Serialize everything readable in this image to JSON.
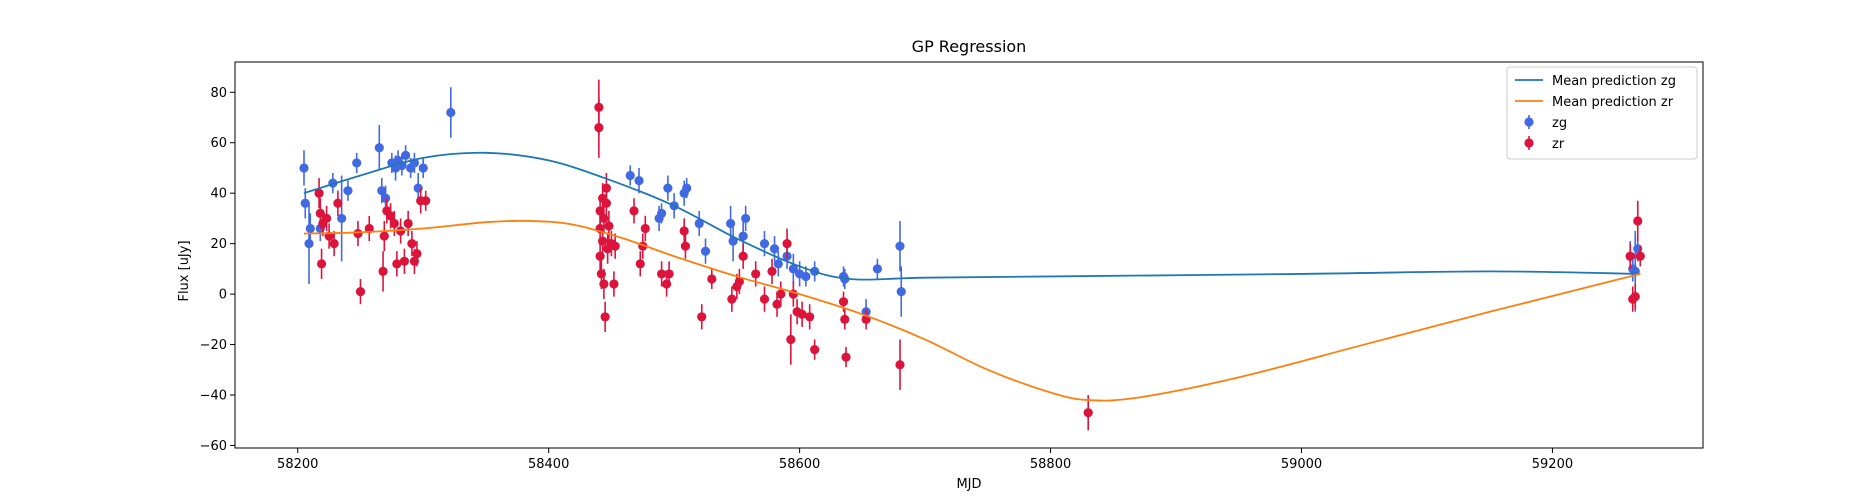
{
  "chart_data": {
    "type": "scatter",
    "title": "GP Regression",
    "xlabel": "MJD",
    "ylabel": "Flux [uJy]",
    "xlim": [
      58150,
      59320
    ],
    "ylim": [
      -61,
      92
    ],
    "xticks": [
      58200,
      58400,
      58600,
      58800,
      59000,
      59200
    ],
    "yticks": [
      -60,
      -40,
      -20,
      0,
      20,
      40,
      60,
      80
    ],
    "grid": false,
    "legend_position": "top-right",
    "series": [
      {
        "name": "Mean prediction zg",
        "kind": "line",
        "color": "#1f77b4",
        "x": [
          58205,
          58250,
          58300,
          58350,
          58400,
          58450,
          58500,
          58550,
          58600,
          58640,
          58700,
          58800,
          59000,
          59150,
          59270
        ],
        "y": [
          40,
          47,
          54,
          56,
          53,
          45,
          35,
          22,
          11,
          6,
          6.5,
          7,
          8,
          9,
          8
        ]
      },
      {
        "name": "Mean prediction zr",
        "kind": "line",
        "color": "#ff7f0e",
        "x": [
          58205,
          58250,
          58300,
          58350,
          58385,
          58420,
          58460,
          58500,
          58550,
          58600,
          58650,
          58700,
          58750,
          58800,
          58830,
          58870,
          58950,
          59050,
          59150,
          59230,
          59270
        ],
        "y": [
          24,
          24.5,
          26,
          28.5,
          29,
          27.5,
          22,
          15,
          7,
          0,
          -8,
          -18,
          -30,
          -39,
          -42,
          -41,
          -33,
          -20,
          -7,
          3,
          8
        ]
      },
      {
        "name": "zg",
        "kind": "errorbar",
        "color": "#4169e1",
        "points": [
          {
            "x": 58205,
            "y": 50,
            "err": 7
          },
          {
            "x": 58206,
            "y": 36,
            "err": 6
          },
          {
            "x": 58209,
            "y": 20,
            "err": 16
          },
          {
            "x": 58210,
            "y": 26,
            "err": 6
          },
          {
            "x": 58218,
            "y": 26,
            "err": 5
          },
          {
            "x": 58228,
            "y": 44,
            "err": 4
          },
          {
            "x": 58235,
            "y": 30,
            "err": 17
          },
          {
            "x": 58240,
            "y": 41,
            "err": 4
          },
          {
            "x": 58247,
            "y": 52,
            "err": 4
          },
          {
            "x": 58265,
            "y": 58,
            "err": 9
          },
          {
            "x": 58267,
            "y": 41,
            "err": 5
          },
          {
            "x": 58270,
            "y": 38,
            "err": 5
          },
          {
            "x": 58275,
            "y": 52,
            "err": 4
          },
          {
            "x": 58278,
            "y": 50,
            "err": 5
          },
          {
            "x": 58280,
            "y": 53,
            "err": 4
          },
          {
            "x": 58283,
            "y": 51,
            "err": 4
          },
          {
            "x": 58286,
            "y": 55,
            "err": 4
          },
          {
            "x": 58290,
            "y": 50,
            "err": 4
          },
          {
            "x": 58293,
            "y": 52,
            "err": 4
          },
          {
            "x": 58296,
            "y": 42,
            "err": 6
          },
          {
            "x": 58300,
            "y": 50,
            "err": 4
          },
          {
            "x": 58322,
            "y": 72,
            "err": 10
          },
          {
            "x": 58465,
            "y": 47,
            "err": 4
          },
          {
            "x": 58472,
            "y": 45,
            "err": 5
          },
          {
            "x": 58488,
            "y": 30,
            "err": 5
          },
          {
            "x": 58490,
            "y": 32,
            "err": 4
          },
          {
            "x": 58495,
            "y": 42,
            "err": 5
          },
          {
            "x": 58500,
            "y": 35,
            "err": 5
          },
          {
            "x": 58508,
            "y": 40,
            "err": 5
          },
          {
            "x": 58510,
            "y": 42,
            "err": 4
          },
          {
            "x": 58520,
            "y": 28,
            "err": 5
          },
          {
            "x": 58525,
            "y": 17,
            "err": 5
          },
          {
            "x": 58545,
            "y": 28,
            "err": 7
          },
          {
            "x": 58547,
            "y": 21,
            "err": 8
          },
          {
            "x": 58555,
            "y": 23,
            "err": 7
          },
          {
            "x": 58557,
            "y": 30,
            "err": 5
          },
          {
            "x": 58572,
            "y": 20,
            "err": 5
          },
          {
            "x": 58580,
            "y": 18,
            "err": 5
          },
          {
            "x": 58583,
            "y": 12,
            "err": 5
          },
          {
            "x": 58590,
            "y": 15,
            "err": 5
          },
          {
            "x": 58595,
            "y": 10,
            "err": 6
          },
          {
            "x": 58600,
            "y": 8,
            "err": 5
          },
          {
            "x": 58605,
            "y": 7,
            "err": 4
          },
          {
            "x": 58612,
            "y": 9,
            "err": 4
          },
          {
            "x": 58635,
            "y": 7,
            "err": 4
          },
          {
            "x": 58636,
            "y": 6,
            "err": 4
          },
          {
            "x": 58653,
            "y": -7,
            "err": 5
          },
          {
            "x": 58662,
            "y": 10,
            "err": 4
          },
          {
            "x": 58680,
            "y": 19,
            "err": 10
          },
          {
            "x": 58681,
            "y": 1,
            "err": 10
          },
          {
            "x": 59262,
            "y": 15,
            "err": 6
          },
          {
            "x": 59264,
            "y": 10,
            "err": 5
          },
          {
            "x": 59266,
            "y": 9,
            "err": 16
          },
          {
            "x": 59268,
            "y": 18,
            "err": 5
          }
        ]
      },
      {
        "name": "zr",
        "kind": "errorbar",
        "color": "#dc143c",
        "points": [
          {
            "x": 58217,
            "y": 40,
            "err": 6
          },
          {
            "x": 58218,
            "y": 32,
            "err": 6
          },
          {
            "x": 58219,
            "y": 12,
            "err": 6
          },
          {
            "x": 58220,
            "y": 28,
            "err": 5
          },
          {
            "x": 58223,
            "y": 30,
            "err": 5
          },
          {
            "x": 58225,
            "y": 23,
            "err": 5
          },
          {
            "x": 58229,
            "y": 20,
            "err": 5
          },
          {
            "x": 58232,
            "y": 36,
            "err": 5
          },
          {
            "x": 58248,
            "y": 24,
            "err": 5
          },
          {
            "x": 58250,
            "y": 1,
            "err": 5
          },
          {
            "x": 58257,
            "y": 26,
            "err": 5
          },
          {
            "x": 58268,
            "y": 9,
            "err": 8
          },
          {
            "x": 58269,
            "y": 23,
            "err": 6
          },
          {
            "x": 58271,
            "y": 33,
            "err": 5
          },
          {
            "x": 58274,
            "y": 31,
            "err": 5
          },
          {
            "x": 58277,
            "y": 28,
            "err": 5
          },
          {
            "x": 58279,
            "y": 12,
            "err": 5
          },
          {
            "x": 58282,
            "y": 25,
            "err": 5
          },
          {
            "x": 58285,
            "y": 13,
            "err": 5
          },
          {
            "x": 58288,
            "y": 28,
            "err": 5
          },
          {
            "x": 58291,
            "y": 20,
            "err": 5
          },
          {
            "x": 58293,
            "y": 13,
            "err": 5
          },
          {
            "x": 58295,
            "y": 16,
            "err": 5
          },
          {
            "x": 58298,
            "y": 37,
            "err": 5
          },
          {
            "x": 58302,
            "y": 37,
            "err": 4
          },
          {
            "x": 58440,
            "y": 74,
            "err": 11
          },
          {
            "x": 58440,
            "y": 66,
            "err": 12
          },
          {
            "x": 58441,
            "y": 33,
            "err": 6
          },
          {
            "x": 58441,
            "y": 26,
            "err": 6
          },
          {
            "x": 58441,
            "y": 15,
            "err": 6
          },
          {
            "x": 58442,
            "y": 8,
            "err": 6
          },
          {
            "x": 58443,
            "y": 21,
            "err": 6
          },
          {
            "x": 58443,
            "y": 38,
            "err": 6
          },
          {
            "x": 58444,
            "y": 30,
            "err": 6
          },
          {
            "x": 58444,
            "y": 4,
            "err": 6
          },
          {
            "x": 58445,
            "y": -9,
            "err": 6
          },
          {
            "x": 58446,
            "y": 42,
            "err": 6
          },
          {
            "x": 58446,
            "y": 36,
            "err": 6
          },
          {
            "x": 58447,
            "y": 18,
            "err": 6
          },
          {
            "x": 58448,
            "y": 27,
            "err": 6
          },
          {
            "x": 58450,
            "y": 20,
            "err": 5
          },
          {
            "x": 58452,
            "y": 4,
            "err": 5
          },
          {
            "x": 58453,
            "y": 19,
            "err": 5
          },
          {
            "x": 58468,
            "y": 33,
            "err": 5
          },
          {
            "x": 58473,
            "y": 12,
            "err": 5
          },
          {
            "x": 58475,
            "y": 19,
            "err": 5
          },
          {
            "x": 58477,
            "y": 26,
            "err": 5
          },
          {
            "x": 58490,
            "y": 8,
            "err": 5
          },
          {
            "x": 58494,
            "y": 4,
            "err": 5
          },
          {
            "x": 58496,
            "y": 8,
            "err": 5
          },
          {
            "x": 58508,
            "y": 25,
            "err": 5
          },
          {
            "x": 58509,
            "y": 19,
            "err": 5
          },
          {
            "x": 58522,
            "y": -9,
            "err": 5
          },
          {
            "x": 58530,
            "y": 6,
            "err": 4
          },
          {
            "x": 58546,
            "y": -2,
            "err": 5
          },
          {
            "x": 58550,
            "y": 3,
            "err": 5
          },
          {
            "x": 58552,
            "y": 5,
            "err": 5
          },
          {
            "x": 58555,
            "y": 15,
            "err": 5
          },
          {
            "x": 58565,
            "y": 8,
            "err": 5
          },
          {
            "x": 58572,
            "y": -2,
            "err": 5
          },
          {
            "x": 58578,
            "y": 9,
            "err": 5
          },
          {
            "x": 58582,
            "y": -4,
            "err": 5
          },
          {
            "x": 58585,
            "y": 0,
            "err": 5
          },
          {
            "x": 58590,
            "y": 20,
            "err": 6
          },
          {
            "x": 58593,
            "y": -18,
            "err": 10
          },
          {
            "x": 58595,
            "y": 0,
            "err": 5
          },
          {
            "x": 58598,
            "y": -7,
            "err": 5
          },
          {
            "x": 58602,
            "y": -8,
            "err": 5
          },
          {
            "x": 58608,
            "y": -9,
            "err": 5
          },
          {
            "x": 58612,
            "y": -22,
            "err": 4
          },
          {
            "x": 58635,
            "y": -3,
            "err": 4
          },
          {
            "x": 58636,
            "y": -10,
            "err": 4
          },
          {
            "x": 58637,
            "y": -25,
            "err": 4
          },
          {
            "x": 58653,
            "y": -10,
            "err": 4
          },
          {
            "x": 58680,
            "y": -28,
            "err": 10
          },
          {
            "x": 58830,
            "y": -47,
            "err": 7
          },
          {
            "x": 59262,
            "y": 15,
            "err": 5
          },
          {
            "x": 59264,
            "y": -2,
            "err": 5
          },
          {
            "x": 59266,
            "y": -1,
            "err": 5
          },
          {
            "x": 59268,
            "y": 29,
            "err": 8
          },
          {
            "x": 59270,
            "y": 15,
            "err": 4
          }
        ]
      }
    ]
  }
}
